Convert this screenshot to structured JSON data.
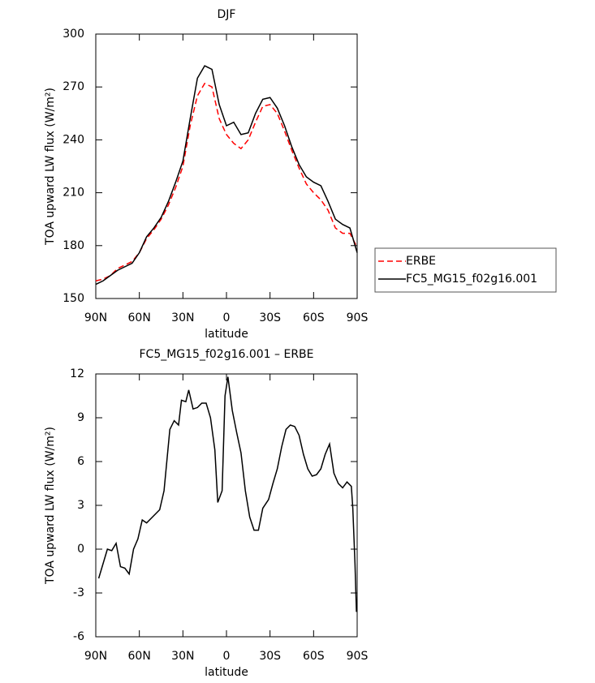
{
  "chart_data": [
    {
      "type": "line",
      "title": "DJF",
      "x_label": "latitude",
      "y_label": "TOA upward LW flux (W/m²)",
      "x": [
        90,
        85,
        80,
        75,
        70,
        65,
        60,
        55,
        50,
        45,
        40,
        35,
        30,
        25,
        20,
        15,
        10,
        5,
        0,
        -5,
        -10,
        -15,
        -20,
        -25,
        -30,
        -35,
        -40,
        -45,
        -50,
        -55,
        -60,
        -65,
        -70,
        -75,
        -80,
        -85,
        -90
      ],
      "series": [
        {
          "name": "ERBE",
          "color": "#ff0000",
          "line_style": "dashed",
          "values": [
            160,
            161,
            163,
            167,
            169,
            171,
            176,
            184,
            189,
            195,
            203,
            213,
            225,
            248,
            265,
            272,
            270,
            252,
            243,
            238,
            235,
            240,
            250,
            259,
            260,
            255,
            245,
            234,
            224,
            215,
            210,
            206,
            200,
            190,
            187,
            187,
            179
          ]
        },
        {
          "name": "FC5_MG15_f02g16.001",
          "color": "#000000",
          "line_style": "solid",
          "values": [
            158,
            160,
            163,
            166,
            168,
            170,
            176,
            185,
            190,
            196,
            205,
            216,
            228,
            252,
            275,
            282,
            280,
            260,
            248,
            250,
            243,
            244,
            255,
            263,
            264,
            258,
            248,
            236,
            226,
            219,
            216,
            214,
            205,
            195,
            192,
            190,
            176
          ]
        }
      ],
      "xlim": [
        90,
        -90
      ],
      "ylim": [
        150,
        300
      ],
      "xticks": [
        {
          "value": 90,
          "label": "90N"
        },
        {
          "value": 60,
          "label": "60N"
        },
        {
          "value": 30,
          "label": "30N"
        },
        0,
        {
          "value": -30,
          "label": "30S"
        },
        {
          "value": -60,
          "label": "60S"
        },
        {
          "value": -90,
          "label": "90S"
        }
      ],
      "yticks": [
        150,
        180,
        210,
        240,
        270,
        300
      ],
      "legend": "right"
    },
    {
      "type": "line",
      "title": "FC5_MG15_f02g16.001 – ERBE",
      "x_label": "latitude",
      "y_label": "TOA upward LW flux (W/m²)",
      "x": [
        88,
        85,
        82,
        79,
        76,
        73,
        70,
        67,
        64,
        61,
        58,
        55,
        50,
        46,
        43,
        39,
        36,
        33,
        31,
        28,
        26,
        23,
        20,
        17,
        14,
        11,
        8,
        6,
        3,
        1,
        -1,
        -4,
        -7,
        -10,
        -13,
        -16,
        -19,
        -22,
        -25,
        -29,
        -32,
        -35,
        -38,
        -41,
        -44,
        -47,
        -50,
        -53,
        -56,
        -59,
        -62,
        -65,
        -68,
        -71,
        -74,
        -77,
        -80,
        -83,
        -86,
        -87,
        -88.5,
        -89.5
      ],
      "color": "#000000",
      "values": [
        -2.0,
        -1.0,
        0.0,
        -0.1,
        0.4,
        -1.2,
        -1.3,
        -1.7,
        0.0,
        0.7,
        2.0,
        1.8,
        2.3,
        2.7,
        4.0,
        8.2,
        8.8,
        8.5,
        10.2,
        10.1,
        10.9,
        9.6,
        9.7,
        10.0,
        10.0,
        9.0,
        6.8,
        3.2,
        4.0,
        10.5,
        11.8,
        9.5,
        8.0,
        6.6,
        4.0,
        2.2,
        1.3,
        1.3,
        2.8,
        3.4,
        4.5,
        5.5,
        7.0,
        8.2,
        8.5,
        8.4,
        7.8,
        6.5,
        5.5,
        5.0,
        5.1,
        5.5,
        6.5,
        7.2,
        5.2,
        4.5,
        4.2,
        4.6,
        4.3,
        2.8,
        -1.0,
        -4.3
      ],
      "xlim": [
        90,
        -90
      ],
      "ylim": [
        -6,
        12
      ],
      "xticks": [
        {
          "value": 90,
          "label": "90N"
        },
        {
          "value": 60,
          "label": "60N"
        },
        {
          "value": 30,
          "label": "30N"
        },
        0,
        {
          "value": -30,
          "label": "30S"
        },
        {
          "value": -60,
          "label": "60S"
        },
        {
          "value": -90,
          "label": "90S"
        }
      ],
      "yticks": [
        -6,
        -3,
        0,
        3,
        6,
        9,
        12
      ]
    }
  ]
}
